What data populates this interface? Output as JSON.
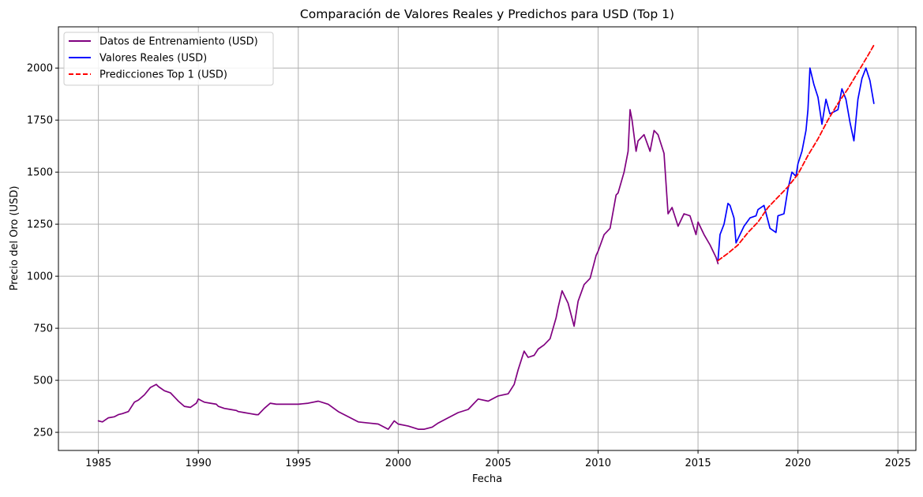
{
  "chart_data": {
    "type": "line",
    "title": "Comparación de Valores Reales y Predichos para USD (Top 1)",
    "xlabel": "Fecha",
    "ylabel": "Precio del Oro (USD)",
    "xlim": [
      1983.0,
      2025.9
    ],
    "ylim": [
      163,
      2198
    ],
    "x_ticks": [
      1985,
      1990,
      1995,
      2000,
      2005,
      2010,
      2015,
      2020,
      2025
    ],
    "x_tick_labels": [
      "1985",
      "1990",
      "1995",
      "2000",
      "2005",
      "2010",
      "2015",
      "2020",
      "2025"
    ],
    "y_ticks": [
      250,
      500,
      750,
      1000,
      1250,
      1500,
      1750,
      2000
    ],
    "y_tick_labels": [
      "250",
      "500",
      "750",
      "1000",
      "1250",
      "1500",
      "1750",
      "2000"
    ],
    "grid": true,
    "legend_position": "top-left",
    "series": [
      {
        "name": "Datos de Entrenamiento (USD)",
        "color": "#800080",
        "style": "solid",
        "x": [
          1985.0,
          1985.2,
          1985.5,
          1985.8,
          1986.0,
          1986.2,
          1986.5,
          1986.8,
          1987.0,
          1987.3,
          1987.6,
          1987.9,
          1988.0,
          1988.3,
          1988.6,
          1988.9,
          1989.0,
          1989.3,
          1989.6,
          1989.9,
          1990.0,
          1990.3,
          1990.6,
          1990.9,
          1991.0,
          1991.3,
          1991.6,
          1991.9,
          1992.0,
          1992.3,
          1992.6,
          1992.9,
          1993.0,
          1993.3,
          1993.6,
          1993.9,
          1994.0,
          1994.5,
          1995.0,
          1995.5,
          1996.0,
          1996.5,
          1997.0,
          1997.5,
          1998.0,
          1998.5,
          1999.0,
          1999.5,
          1999.8,
          2000.0,
          2000.5,
          2001.0,
          2001.3,
          2001.7,
          2002.0,
          2002.5,
          2003.0,
          2003.5,
          2004.0,
          2004.5,
          2005.0,
          2005.5,
          2005.8,
          2006.0,
          2006.3,
          2006.5,
          2006.8,
          2007.0,
          2007.3,
          2007.6,
          2007.9,
          2008.0,
          2008.2,
          2008.5,
          2008.8,
          2009.0,
          2009.3,
          2009.6,
          2009.9,
          2010.0,
          2010.3,
          2010.6,
          2010.9,
          2011.0,
          2011.3,
          2011.5,
          2011.6,
          2011.7,
          2011.9,
          2012.0,
          2012.3,
          2012.6,
          2012.8,
          2013.0,
          2013.3,
          2013.5,
          2013.7,
          2014.0,
          2014.3,
          2014.6,
          2014.9,
          2015.0,
          2015.3,
          2015.6,
          2015.9,
          2016.0
        ],
        "y": [
          305,
          300,
          320,
          325,
          335,
          340,
          350,
          395,
          405,
          430,
          465,
          480,
          470,
          450,
          440,
          410,
          400,
          375,
          370,
          390,
          410,
          395,
          390,
          385,
          375,
          365,
          360,
          355,
          350,
          345,
          340,
          335,
          335,
          365,
          390,
          385,
          385,
          385,
          385,
          390,
          400,
          385,
          350,
          325,
          300,
          295,
          290,
          265,
          305,
          290,
          280,
          265,
          265,
          275,
          295,
          320,
          345,
          360,
          410,
          400,
          425,
          435,
          480,
          550,
          640,
          610,
          620,
          650,
          670,
          700,
          800,
          850,
          930,
          870,
          760,
          880,
          960,
          990,
          1100,
          1120,
          1200,
          1230,
          1390,
          1400,
          1500,
          1600,
          1800,
          1750,
          1600,
          1650,
          1680,
          1600,
          1700,
          1680,
          1590,
          1300,
          1330,
          1240,
          1300,
          1290,
          1200,
          1260,
          1200,
          1150,
          1090,
          1060
        ]
      },
      {
        "name": "Valores Reales (USD)",
        "color": "#0000ff",
        "style": "solid",
        "x": [
          2016.0,
          2016.1,
          2016.3,
          2016.5,
          2016.6,
          2016.8,
          2016.9,
          2017.0,
          2017.3,
          2017.6,
          2017.9,
          2018.0,
          2018.3,
          2018.6,
          2018.9,
          2019.0,
          2019.3,
          2019.5,
          2019.7,
          2019.9,
          2020.0,
          2020.2,
          2020.4,
          2020.5,
          2020.6,
          2020.8,
          2021.0,
          2021.2,
          2021.4,
          2021.6,
          2021.8,
          2022.0,
          2022.2,
          2022.4,
          2022.6,
          2022.8,
          2023.0,
          2023.2,
          2023.4,
          2023.6,
          2023.8
        ],
        "y": [
          1080,
          1200,
          1250,
          1350,
          1340,
          1280,
          1160,
          1180,
          1240,
          1280,
          1290,
          1320,
          1340,
          1230,
          1210,
          1290,
          1300,
          1420,
          1500,
          1480,
          1540,
          1600,
          1700,
          1800,
          2000,
          1920,
          1860,
          1730,
          1850,
          1780,
          1790,
          1800,
          1900,
          1850,
          1740,
          1650,
          1850,
          1950,
          2000,
          1940,
          1830
        ]
      },
      {
        "name": "Predicciones Top 1 (USD)",
        "color": "#ff0000",
        "style": "dashed",
        "x": [
          2016.0,
          2016.5,
          2017.0,
          2017.5,
          2018.0,
          2018.5,
          2019.0,
          2019.5,
          2020.0,
          2020.5,
          2021.0,
          2021.5,
          2022.0,
          2022.5,
          2023.0,
          2023.5,
          2023.8
        ],
        "y": [
          1075,
          1110,
          1150,
          1210,
          1260,
          1330,
          1380,
          1430,
          1490,
          1580,
          1660,
          1750,
          1830,
          1900,
          1980,
          2060,
          2110
        ]
      }
    ]
  }
}
